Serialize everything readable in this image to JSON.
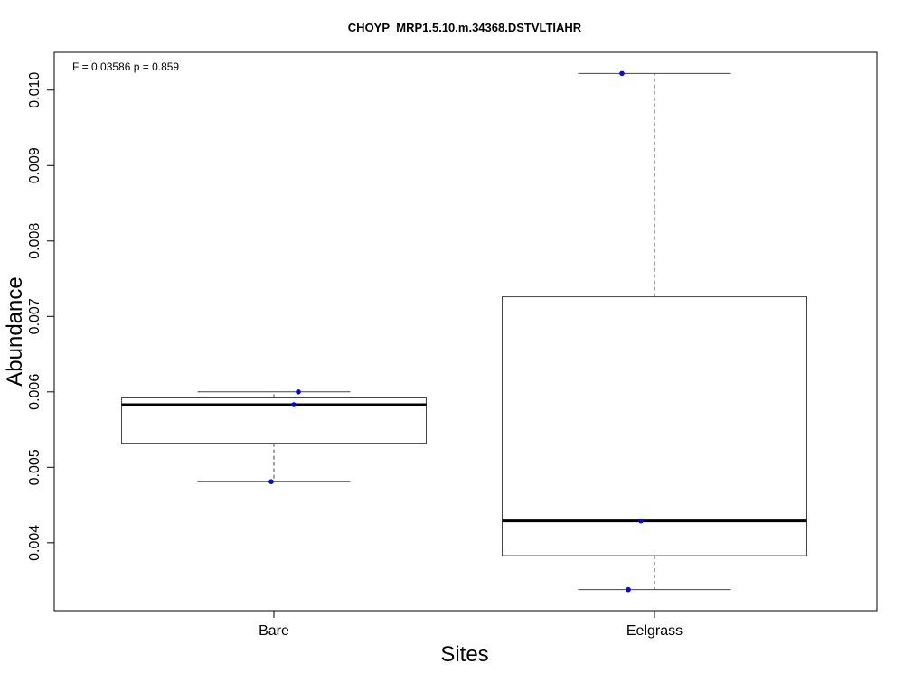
{
  "chart_data": {
    "type": "box",
    "title": "CHOYP_MRP1.5.10.m.34368.DSTVLTIAHR",
    "annotation": "F = 0.03586 p = 0.859",
    "xlabel": "Sites",
    "ylabel": "Abundance",
    "categories": [
      "Bare",
      "Eelgrass"
    ],
    "ylim": [
      0.0031,
      0.0105
    ],
    "yticks": [
      "0.004",
      "0.005",
      "0.006",
      "0.007",
      "0.008",
      "0.009",
      "0.010"
    ],
    "grid": false,
    "boxes": [
      {
        "name": "Bare",
        "whisker_low": 0.00481,
        "q1": 0.00532,
        "median": 0.00583,
        "q3": 0.00592,
        "whisker_high": 0.006,
        "points": [
          0.006,
          0.00583,
          0.00481
        ]
      },
      {
        "name": "Eelgrass",
        "whisker_low": 0.00338,
        "q1": 0.00383,
        "median": 0.00429,
        "q3": 0.00726,
        "whisker_high": 0.01022,
        "points": [
          0.01022,
          0.00429,
          0.00338
        ]
      }
    ],
    "point_color": "#0000ff"
  }
}
